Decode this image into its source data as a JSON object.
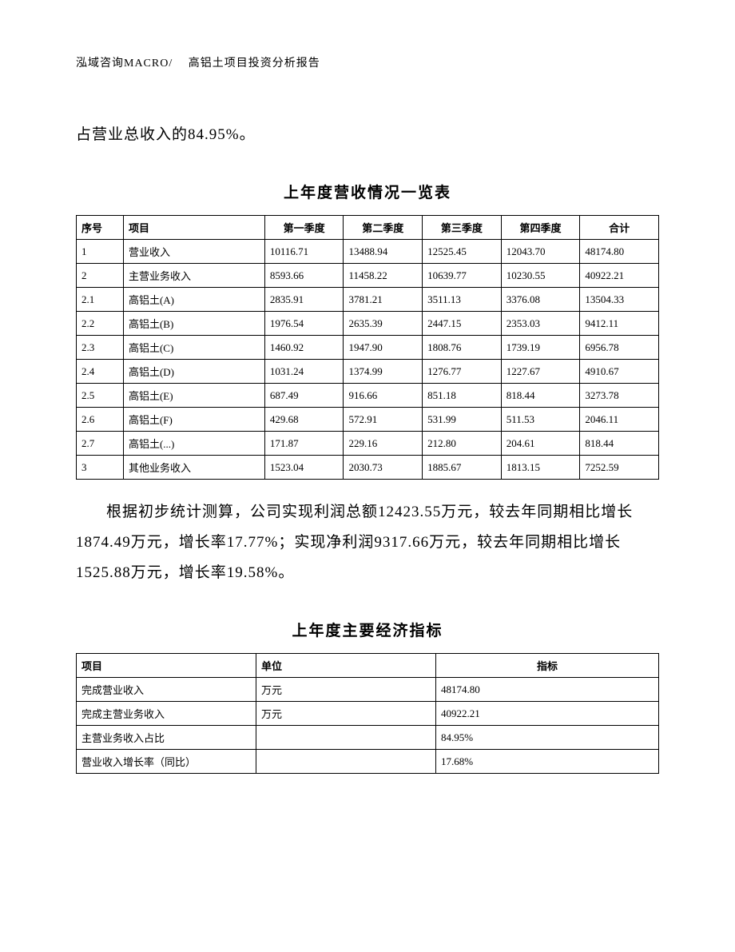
{
  "header": "泓域咨询MACRO/　 高铝土项目投资分析报告",
  "intro_line": "占营业总收入的84.95%。",
  "table1_title": "上年度营收情况一览表",
  "t1": {
    "headers": [
      "序号",
      "项目",
      "第一季度",
      "第二季度",
      "第三季度",
      "第四季度",
      "合计"
    ],
    "rows": [
      [
        "1",
        "营业收入",
        "10116.71",
        "13488.94",
        "12525.45",
        "12043.70",
        "48174.80"
      ],
      [
        "2",
        "主营业务收入",
        "8593.66",
        "11458.22",
        "10639.77",
        "10230.55",
        "40922.21"
      ],
      [
        "2.1",
        "高铝土(A)",
        "2835.91",
        "3781.21",
        "3511.13",
        "3376.08",
        "13504.33"
      ],
      [
        "2.2",
        "高铝土(B)",
        "1976.54",
        "2635.39",
        "2447.15",
        "2353.03",
        "9412.11"
      ],
      [
        "2.3",
        "高铝土(C)",
        "1460.92",
        "1947.90",
        "1808.76",
        "1739.19",
        "6956.78"
      ],
      [
        "2.4",
        "高铝土(D)",
        "1031.24",
        "1374.99",
        "1276.77",
        "1227.67",
        "4910.67"
      ],
      [
        "2.5",
        "高铝土(E)",
        "687.49",
        "916.66",
        "851.18",
        "818.44",
        "3273.78"
      ],
      [
        "2.6",
        "高铝土(F)",
        "429.68",
        "572.91",
        "531.99",
        "511.53",
        "2046.11"
      ],
      [
        "2.7",
        "高铝土(...)",
        "171.87",
        "229.16",
        "212.80",
        "204.61",
        "818.44"
      ],
      [
        "3",
        "其他业务收入",
        "1523.04",
        "2030.73",
        "1885.67",
        "1813.15",
        "7252.59"
      ]
    ]
  },
  "mid_para": "根据初步统计测算，公司实现利润总额12423.55万元，较去年同期相比增长1874.49万元，增长率17.77%；实现净利润9317.66万元，较去年同期相比增长1525.88万元，增长率19.58%。",
  "table2_title": "上年度主要经济指标",
  "t2": {
    "headers": [
      "项目",
      "单位",
      "指标"
    ],
    "rows": [
      [
        "完成营业收入",
        "万元",
        "48174.80"
      ],
      [
        "完成主营业务收入",
        "万元",
        "40922.21"
      ],
      [
        "主营业务收入占比",
        "",
        "84.95%"
      ],
      [
        "营业收入增长率（同比）",
        "",
        "17.68%"
      ]
    ]
  }
}
